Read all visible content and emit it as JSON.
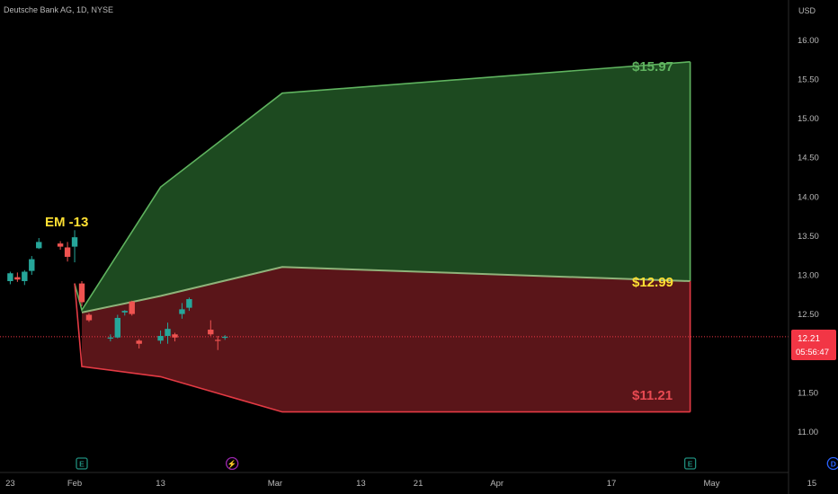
{
  "header": {
    "title": "Deutsche Bank AG, 1D, NYSE",
    "currency": "USD"
  },
  "colors": {
    "background": "#000000",
    "bull": "#26a69a",
    "bear": "#ef5350",
    "upper_zone_fill": "#1d4a20",
    "upper_zone_stroke": "#5fb35f",
    "lower_zone_fill": "#5a1519",
    "lower_zone_stroke": "#e33a44",
    "label_green": "#5fb35f",
    "label_yellow": "#ffe033",
    "label_red": "#e84a52",
    "price_badge": "#f23645",
    "event_earnings": "#1f8c7c",
    "event_split": "#9c27b0",
    "event_dividend": "#2962ff"
  },
  "annotations": {
    "em_label": "EM -13",
    "upper_target": "$15.97",
    "mid_target": "$12.99",
    "lower_target": "$11.21"
  },
  "price_badge": {
    "price": "12.21",
    "countdown": "05:56:47"
  },
  "events": [
    {
      "letter": "E",
      "icon": "earnings-marker"
    },
    {
      "letter": "⚡",
      "icon": "lightning-marker"
    },
    {
      "letter": "E",
      "icon": "earnings-marker"
    },
    {
      "letter": "D",
      "icon": "dividend-marker"
    }
  ],
  "chart_data": {
    "type": "candlestick",
    "title": "Deutsche Bank AG, 1D, NYSE",
    "ylabel": "USD",
    "ylim": [
      10.6,
      16.3
    ],
    "y_ticks": [
      "16.00",
      "15.50",
      "15.00",
      "14.50",
      "14.00",
      "13.50",
      "13.00",
      "12.50",
      "12.00",
      "11.50",
      "11.00"
    ],
    "x_ticks": [
      "23",
      "Feb",
      "13",
      "Mar",
      "13",
      "21",
      "Apr",
      "17",
      "May",
      "15"
    ],
    "x_tick_dates": [
      "2023-01-23",
      "2023-02-01",
      "2023-02-13",
      "2023-03-01",
      "2023-03-13",
      "2023-03-21",
      "2023-04-01",
      "2023-04-17",
      "2023-05-01",
      "2023-05-15"
    ],
    "candles": [
      {
        "date": "2023-01-18",
        "open": 12.94,
        "high": 13.03,
        "low": 12.84,
        "close": 12.92
      },
      {
        "date": "2023-01-19",
        "open": 12.88,
        "high": 13.02,
        "low": 12.76,
        "close": 12.98
      },
      {
        "date": "2023-01-20",
        "open": 12.95,
        "high": 13.04,
        "low": 12.86,
        "close": 12.97
      },
      {
        "date": "2023-01-23",
        "open": 12.92,
        "high": 13.04,
        "low": 12.88,
        "close": 13.02
      },
      {
        "date": "2023-01-24",
        "open": 12.97,
        "high": 13.03,
        "low": 12.91,
        "close": 12.94
      },
      {
        "date": "2023-01-25",
        "open": 12.92,
        "high": 13.06,
        "low": 12.87,
        "close": 13.04
      },
      {
        "date": "2023-01-26",
        "open": 13.05,
        "high": 13.24,
        "low": 13.0,
        "close": 13.2
      },
      {
        "date": "2023-01-27",
        "open": 13.34,
        "high": 13.47,
        "low": 13.33,
        "close": 13.42
      },
      {
        "date": "2023-01-30",
        "open": 13.4,
        "high": 13.43,
        "low": 13.32,
        "close": 13.36
      },
      {
        "date": "2023-01-31",
        "open": 13.35,
        "high": 13.42,
        "low": 13.17,
        "close": 13.23
      },
      {
        "date": "2023-02-01",
        "open": 13.36,
        "high": 13.57,
        "low": 13.16,
        "close": 13.48
      },
      {
        "date": "2023-02-02",
        "open": 12.89,
        "high": 12.92,
        "low": 12.6,
        "close": 12.65
      },
      {
        "date": "2023-02-03",
        "open": 12.49,
        "high": 12.51,
        "low": 12.4,
        "close": 12.42
      },
      {
        "date": "2023-02-06",
        "open": 12.2,
        "high": 12.24,
        "low": 12.15,
        "close": 12.2
      },
      {
        "date": "2023-02-07",
        "open": 12.2,
        "high": 12.49,
        "low": 12.19,
        "close": 12.45
      },
      {
        "date": "2023-02-08",
        "open": 12.52,
        "high": 12.55,
        "low": 12.48,
        "close": 12.54
      },
      {
        "date": "2023-02-09",
        "open": 12.66,
        "high": 12.67,
        "low": 12.48,
        "close": 12.5
      },
      {
        "date": "2023-02-10",
        "open": 12.16,
        "high": 12.18,
        "low": 12.06,
        "close": 12.12
      },
      {
        "date": "2023-02-13",
        "open": 12.16,
        "high": 12.29,
        "low": 12.12,
        "close": 12.22
      },
      {
        "date": "2023-02-14",
        "open": 12.22,
        "high": 12.39,
        "low": 12.12,
        "close": 12.31
      },
      {
        "date": "2023-02-15",
        "open": 12.24,
        "high": 12.26,
        "low": 12.15,
        "close": 12.2
      },
      {
        "date": "2023-02-16",
        "open": 12.5,
        "high": 12.64,
        "low": 12.44,
        "close": 12.56
      },
      {
        "date": "2023-02-17",
        "open": 12.58,
        "high": 12.71,
        "low": 12.54,
        "close": 12.69
      },
      {
        "date": "2023-02-20",
        "open": 12.3,
        "high": 12.42,
        "low": 12.22,
        "close": 12.24
      },
      {
        "date": "2023-02-21",
        "open": 12.17,
        "high": 12.22,
        "low": 12.04,
        "close": 12.16
      },
      {
        "date": "2023-02-22",
        "open": 12.21,
        "high": 12.23,
        "low": 12.17,
        "close": 12.21
      }
    ],
    "upper_zone": [
      {
        "date": "2023-02-02",
        "value": 12.55
      },
      {
        "date": "2023-02-13",
        "value": 14.12
      },
      {
        "date": "2023-03-02",
        "value": 15.32
      },
      {
        "date": "2023-04-28",
        "value": 15.72
      }
    ],
    "middle_line": [
      {
        "date": "2023-02-01",
        "value": 12.89
      },
      {
        "date": "2023-02-02",
        "value": 12.52
      },
      {
        "date": "2023-02-13",
        "value": 12.73
      },
      {
        "date": "2023-03-02",
        "value": 13.1
      },
      {
        "date": "2023-04-28",
        "value": 12.92
      }
    ],
    "lower_zone": [
      {
        "date": "2023-02-02",
        "value": 11.83
      },
      {
        "date": "2023-02-13",
        "value": 11.7
      },
      {
        "date": "2023-03-02",
        "value": 11.25
      },
      {
        "date": "2023-04-28",
        "value": 11.25
      }
    ],
    "current_price": 12.21,
    "events": [
      {
        "date": "2023-02-02",
        "type": "earnings"
      },
      {
        "date": "2023-02-23",
        "type": "split"
      },
      {
        "date": "2023-04-28",
        "type": "earnings"
      },
      {
        "date": "2023-05-18",
        "type": "dividend"
      }
    ]
  }
}
